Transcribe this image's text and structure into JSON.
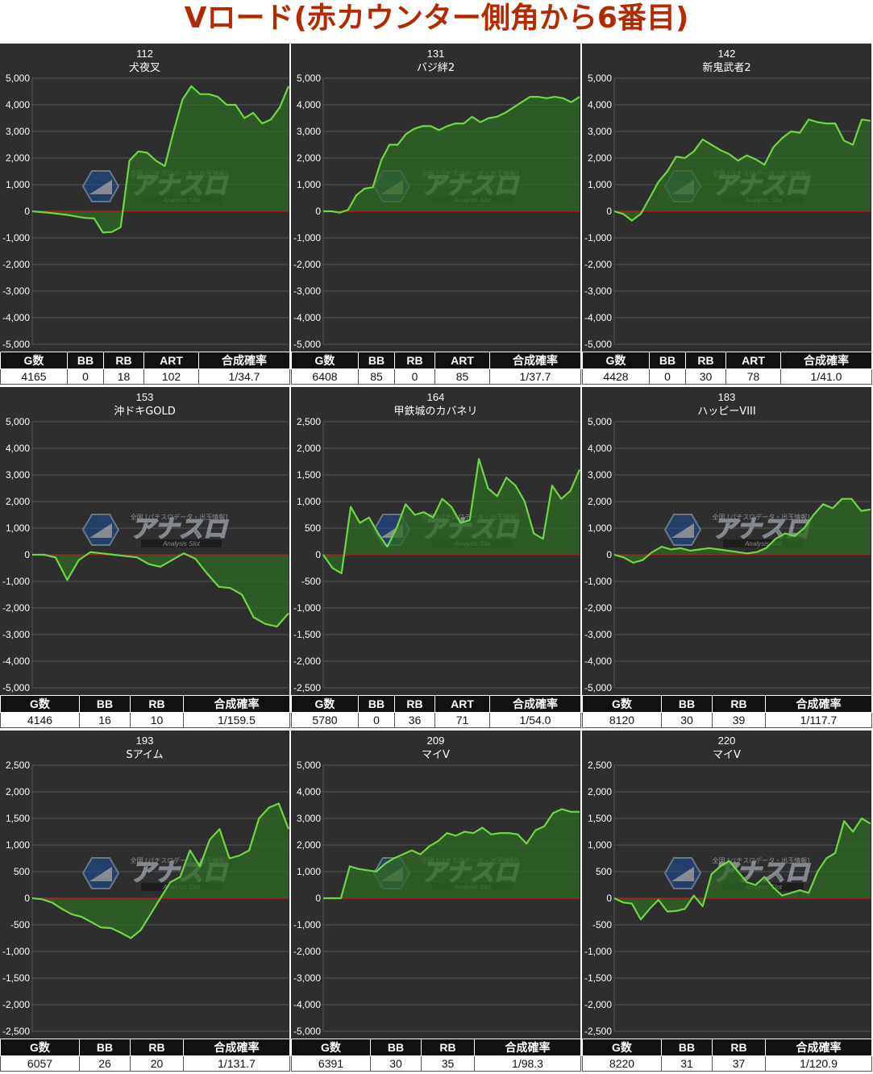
{
  "title": "Vロード(赤カウンター側角から6番目)",
  "colors": {
    "background": "#2e2e2e",
    "grid": "#555555",
    "line": "#6ed644",
    "fill": "#2f6a23",
    "zero_line": "#c8141a",
    "title_red": "#b42a00"
  },
  "watermark": {
    "main": "アナスロ",
    "sub": "Analysis Slot",
    "top": "全国 [パチスロデータ・出玉情報]"
  },
  "chart_data": [
    {
      "type": "area",
      "machine_no": "112",
      "machine_name": "犬夜叉",
      "ylim": [
        -5000,
        5000
      ],
      "yticks": [
        "5,000",
        "4,000",
        "3,000",
        "2,000",
        "1,000",
        "0",
        "-1,000",
        "-2,000",
        "-3,000",
        "-4,000",
        "-5,000"
      ],
      "values": [
        0,
        -30,
        -60,
        -100,
        -140,
        -200,
        -250,
        -270,
        -800,
        -780,
        -600,
        1900,
        2250,
        2200,
        1900,
        1700,
        3000,
        4200,
        4700,
        4400,
        4400,
        4300,
        4000,
        4000,
        3500,
        3700,
        3300,
        3450,
        3900,
        4700
      ],
      "stats": {
        "headers": [
          "G数",
          "BB",
          "RB",
          "ART",
          "合成確率"
        ],
        "values": [
          "4165",
          "0",
          "18",
          "102",
          "1/34.7"
        ]
      }
    },
    {
      "type": "area",
      "machine_no": "131",
      "machine_name": "バジ絆2",
      "ylim": [
        -5000,
        5000
      ],
      "yticks": [
        "5,000",
        "4,000",
        "3,000",
        "2,000",
        "1,000",
        "0",
        "-1,000",
        "-2,000",
        "-3,000",
        "-4,000",
        "-5,000"
      ],
      "values": [
        0,
        0,
        -50,
        50,
        600,
        850,
        900,
        1900,
        2500,
        2500,
        2900,
        3100,
        3200,
        3200,
        3050,
        3200,
        3300,
        3300,
        3550,
        3350,
        3500,
        3550,
        3700,
        3900,
        4100,
        4300,
        4300,
        4250,
        4300,
        4250,
        4100,
        4300
      ],
      "stats": {
        "headers": [
          "G数",
          "BB",
          "RB",
          "ART",
          "合成確率"
        ],
        "values": [
          "6408",
          "85",
          "0",
          "85",
          "1/37.7"
        ]
      }
    },
    {
      "type": "area",
      "machine_no": "142",
      "machine_name": "新鬼武者2",
      "ylim": [
        -5000,
        5000
      ],
      "yticks": [
        "5,000",
        "4,000",
        "3,000",
        "2,000",
        "1,000",
        "0",
        "-1,000",
        "-2,000",
        "-3,000",
        "-4,000",
        "-5,000"
      ],
      "values": [
        0,
        -100,
        -350,
        -100,
        500,
        1100,
        1500,
        2050,
        2000,
        2250,
        2700,
        2500,
        2300,
        2150,
        1900,
        2100,
        1950,
        1750,
        2400,
        2750,
        3000,
        2950,
        3450,
        3350,
        3300,
        3300,
        2650,
        2500,
        3450,
        3400
      ],
      "stats": {
        "headers": [
          "G数",
          "BB",
          "RB",
          "ART",
          "合成確率"
        ],
        "values": [
          "4428",
          "0",
          "30",
          "78",
          "1/41.0"
        ]
      }
    },
    {
      "type": "area",
      "machine_no": "153",
      "machine_name": "沖ドキGOLD",
      "ylim": [
        -5000,
        5000
      ],
      "yticks": [
        "5,000",
        "4,000",
        "3,000",
        "2,000",
        "1,000",
        "0",
        "-1,000",
        "-2,000",
        "-3,000",
        "-4,000",
        "-5,000"
      ],
      "values": [
        0,
        0,
        -100,
        -950,
        -200,
        100,
        50,
        0,
        -50,
        -100,
        -350,
        -450,
        -200,
        50,
        -150,
        -700,
        -1200,
        -1250,
        -1500,
        -2350,
        -2600,
        -2700,
        -2200
      ],
      "stats": {
        "headers": [
          "G数",
          "BB",
          "RB",
          "合成確率"
        ],
        "values": [
          "4146",
          "16",
          "10",
          "1/159.5"
        ]
      }
    },
    {
      "type": "area",
      "machine_no": "164",
      "machine_name": "甲鉄城のカバネリ",
      "ylim": [
        -2500,
        2500
      ],
      "yticks": [
        "2,500",
        "2,000",
        "1,500",
        "1,000",
        "500",
        "0",
        "-500",
        "-1,000",
        "-1,500",
        "-2,000",
        "-2,500"
      ],
      "values": [
        0,
        -250,
        -350,
        900,
        600,
        700,
        400,
        150,
        500,
        950,
        750,
        800,
        700,
        1050,
        900,
        600,
        650,
        1800,
        1250,
        1100,
        1450,
        1300,
        1000,
        400,
        300,
        1300,
        1050,
        1200,
        1600
      ],
      "stats": {
        "headers": [
          "G数",
          "BB",
          "RB",
          "ART",
          "合成確率"
        ],
        "values": [
          "5780",
          "0",
          "36",
          "71",
          "1/54.0"
        ]
      }
    },
    {
      "type": "area",
      "machine_no": "183",
      "machine_name": "ハッピーVIII",
      "ylim": [
        -5000,
        5000
      ],
      "yticks": [
        "5,000",
        "4,000",
        "3,000",
        "2,000",
        "1,000",
        "0",
        "-1,000",
        "-2,000",
        "-3,000",
        "-4,000",
        "-5,000"
      ],
      "values": [
        0,
        -100,
        -300,
        -200,
        100,
        300,
        200,
        250,
        150,
        200,
        250,
        200,
        150,
        100,
        50,
        100,
        250,
        600,
        800,
        700,
        1000,
        1500,
        1900,
        1750,
        2100,
        2100,
        1650,
        1700
      ],
      "stats": {
        "headers": [
          "G数",
          "BB",
          "RB",
          "合成確率"
        ],
        "values": [
          "8120",
          "30",
          "39",
          "1/117.7"
        ]
      }
    },
    {
      "type": "area",
      "machine_no": "193",
      "machine_name": "Sアイム",
      "ylim": [
        -2500,
        2500
      ],
      "yticks": [
        "2,500",
        "2,000",
        "1,500",
        "1,000",
        "500",
        "0",
        "-500",
        "-1,000",
        "-1,500",
        "-2,000",
        "-2,500"
      ],
      "values": [
        0,
        -20,
        -80,
        -200,
        -300,
        -350,
        -450,
        -550,
        -560,
        -650,
        -750,
        -600,
        -300,
        0,
        300,
        400,
        900,
        600,
        1100,
        1300,
        750,
        800,
        900,
        1500,
        1700,
        1780,
        1300
      ],
      "stats": {
        "headers": [
          "G数",
          "BB",
          "RB",
          "合成確率"
        ],
        "values": [
          "6057",
          "26",
          "20",
          "1/131.7"
        ]
      }
    },
    {
      "type": "area",
      "machine_no": "209",
      "machine_name": "マイV",
      "ylim": [
        -5000,
        5000
      ],
      "yticks": [
        "5,000",
        "4,000",
        "3,000",
        "2,000",
        "1,000",
        "0",
        "-1,000",
        "-2,000",
        "-3,000",
        "-4,000",
        "-5,000"
      ],
      "values": [
        0,
        0,
        0,
        1200,
        1100,
        1050,
        1000,
        1300,
        1500,
        1650,
        1800,
        1650,
        1950,
        2150,
        2450,
        2350,
        2500,
        2450,
        2650,
        2400,
        2450,
        2450,
        2400,
        2050,
        2550,
        2700,
        3200,
        3350,
        3250,
        3250
      ],
      "stats": {
        "headers": [
          "G数",
          "BB",
          "RB",
          "合成確率"
        ],
        "values": [
          "6391",
          "30",
          "35",
          "1/98.3"
        ]
      }
    },
    {
      "type": "area",
      "machine_no": "220",
      "machine_name": "マイV",
      "ylim": [
        -2500,
        2500
      ],
      "yticks": [
        "2,500",
        "2,000",
        "1,500",
        "1,000",
        "500",
        "0",
        "-500",
        "-1,000",
        "-1,500",
        "-2,000",
        "-2,500"
      ],
      "values": [
        0,
        -80,
        -100,
        -400,
        -200,
        -30,
        -250,
        -240,
        -200,
        50,
        -150,
        450,
        600,
        700,
        500,
        300,
        250,
        400,
        200,
        50,
        100,
        150,
        100,
        500,
        750,
        850,
        1450,
        1250,
        1500,
        1400
      ],
      "stats": {
        "headers": [
          "G数",
          "BB",
          "RB",
          "合成確率"
        ],
        "values": [
          "8220",
          "31",
          "37",
          "1/120.9"
        ]
      }
    }
  ]
}
